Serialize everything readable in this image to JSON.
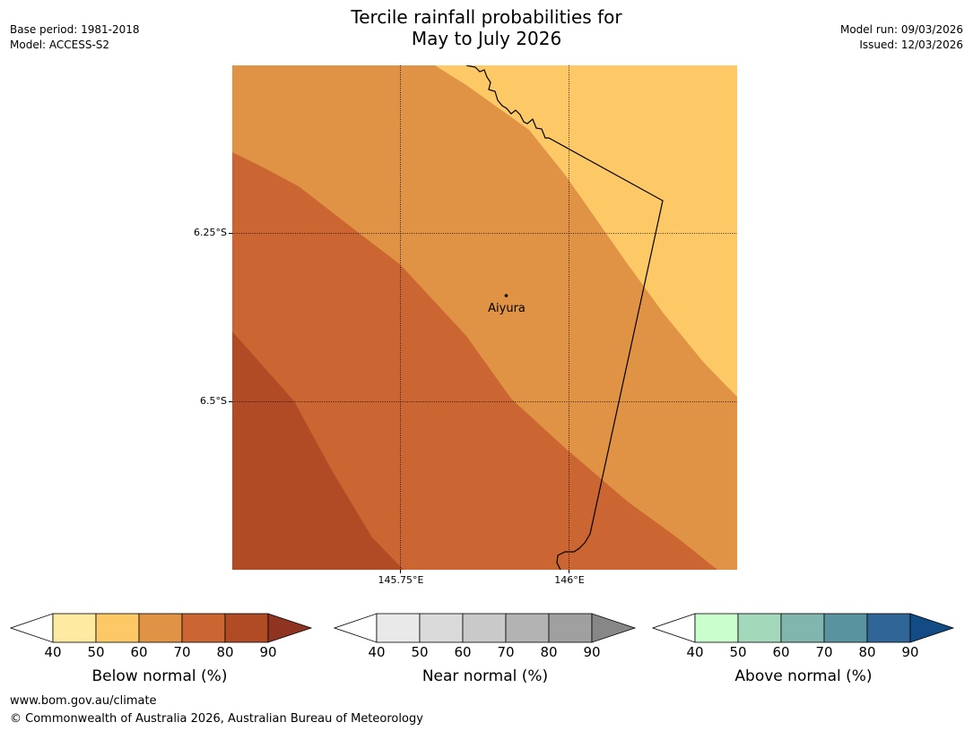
{
  "title": {
    "line1": "Tercile rainfall probabilities for",
    "line2": "May to July 2026"
  },
  "meta_left": {
    "base_period": "Base period: 1981-2018",
    "model": "Model: ACCESS-S2"
  },
  "meta_right": {
    "model_run": "Model run: 09/03/2026",
    "issued": "Issued: 12/03/2026"
  },
  "map": {
    "place_label": "Aiyura",
    "lat_labels": [
      "6.25°S",
      "6.5°S"
    ],
    "lon_labels": [
      "145.75°E",
      "146°E"
    ],
    "zones": [
      {
        "category": "Below normal",
        "range_pct": "50-60",
        "color": "#fdc966"
      },
      {
        "category": "Below normal",
        "range_pct": "60-70",
        "color": "#e09345"
      },
      {
        "category": "Below normal",
        "range_pct": "70-80",
        "color": "#cb6531"
      },
      {
        "category": "Below normal",
        "range_pct": "80-90",
        "color": "#b04b25"
      }
    ]
  },
  "colorbars": [
    {
      "label": "Below normal (%)",
      "ticks": [
        "40",
        "50",
        "60",
        "70",
        "80",
        "90"
      ],
      "colors": [
        "#ffeaa2",
        "#fdc966",
        "#e09345",
        "#cb6531",
        "#b04b25"
      ],
      "over_color": "#8e3420",
      "under_color": "#ffffff"
    },
    {
      "label": "Near normal (%)",
      "ticks": [
        "40",
        "50",
        "60",
        "70",
        "80",
        "90"
      ],
      "colors": [
        "#e9e9e9",
        "#dadada",
        "#c9c9c9",
        "#b3b3b3",
        "#a0a0a0"
      ],
      "over_color": "#878787",
      "under_color": "#ffffff"
    },
    {
      "label": "Above normal (%)",
      "ticks": [
        "40",
        "50",
        "60",
        "70",
        "80",
        "90"
      ],
      "colors": [
        "#c9ffcc",
        "#a3d8ba",
        "#80b6ae",
        "#5a93a0",
        "#306598"
      ],
      "over_color": "#134b85",
      "under_color": "#ffffff"
    }
  ],
  "footer": {
    "url": "www.bom.gov.au/climate",
    "copyright": "© Commonwealth of Australia 2026, Australian Bureau of Meteorology"
  }
}
